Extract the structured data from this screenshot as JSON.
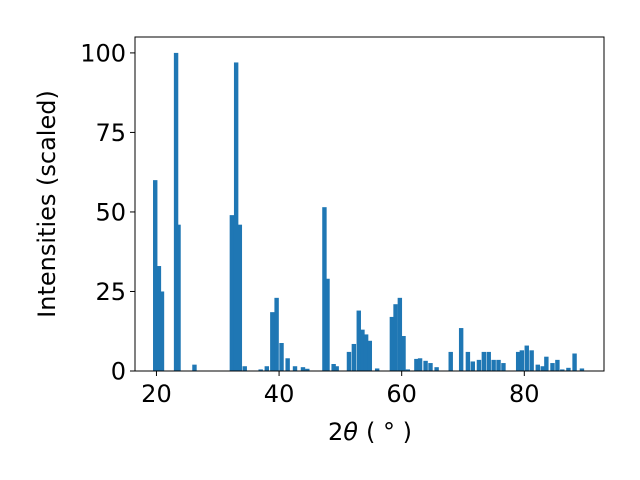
{
  "chart_data": {
    "type": "bar",
    "ylabel": "Intensities (scaled)",
    "xlabel_main": "2",
    "xlabel_symbol": "θ",
    "xlabel_unit": "( ° )",
    "xlim": [
      16.5,
      93
    ],
    "ylim": [
      0,
      105
    ],
    "xticks": [
      20,
      40,
      60,
      80
    ],
    "yticks": [
      0,
      25,
      50,
      75,
      100
    ],
    "bar_width": 0.72,
    "bar_color": "#1f77b4",
    "grid": false,
    "x": [
      19.8,
      20.4,
      20.9,
      23.2,
      23.6,
      26.2,
      32.3,
      33.0,
      33.6,
      34.4,
      37.0,
      38.0,
      38.9,
      39.6,
      40.4,
      41.4,
      42.6,
      43.9,
      44.6,
      47.4,
      47.9,
      48.9,
      49.4,
      51.4,
      52.2,
      53.0,
      53.6,
      54.2,
      54.8,
      56.0,
      58.4,
      59.0,
      59.7,
      60.3,
      61.0,
      62.4,
      63.0,
      63.9,
      64.7,
      65.7,
      68.0,
      69.7,
      70.8,
      71.6,
      72.6,
      73.4,
      74.2,
      75.0,
      75.8,
      76.6,
      79.0,
      79.6,
      80.4,
      81.2,
      82.2,
      83.0,
      83.6,
      84.6,
      85.4,
      86.2,
      87.2,
      88.2,
      89.4
    ],
    "values": [
      60,
      33,
      25,
      100,
      46,
      2,
      49,
      97,
      46,
      1.5,
      0.5,
      1.5,
      18.5,
      23,
      8.8,
      4,
      1.5,
      1.2,
      0.7,
      51.5,
      29,
      2.2,
      1.5,
      6,
      8.5,
      19,
      13,
      11.5,
      9.5,
      0.8,
      17,
      21,
      23,
      11,
      0.5,
      3.8,
      4,
      3.2,
      2.5,
      1.2,
      6,
      13.5,
      6,
      3,
      3.5,
      6,
      6,
      3.5,
      3.5,
      2.5,
      6,
      6.5,
      8,
      6.5,
      2,
      1.5,
      4.5,
      2.5,
      3.5,
      0.5,
      1,
      5.5,
      0.8
    ]
  }
}
